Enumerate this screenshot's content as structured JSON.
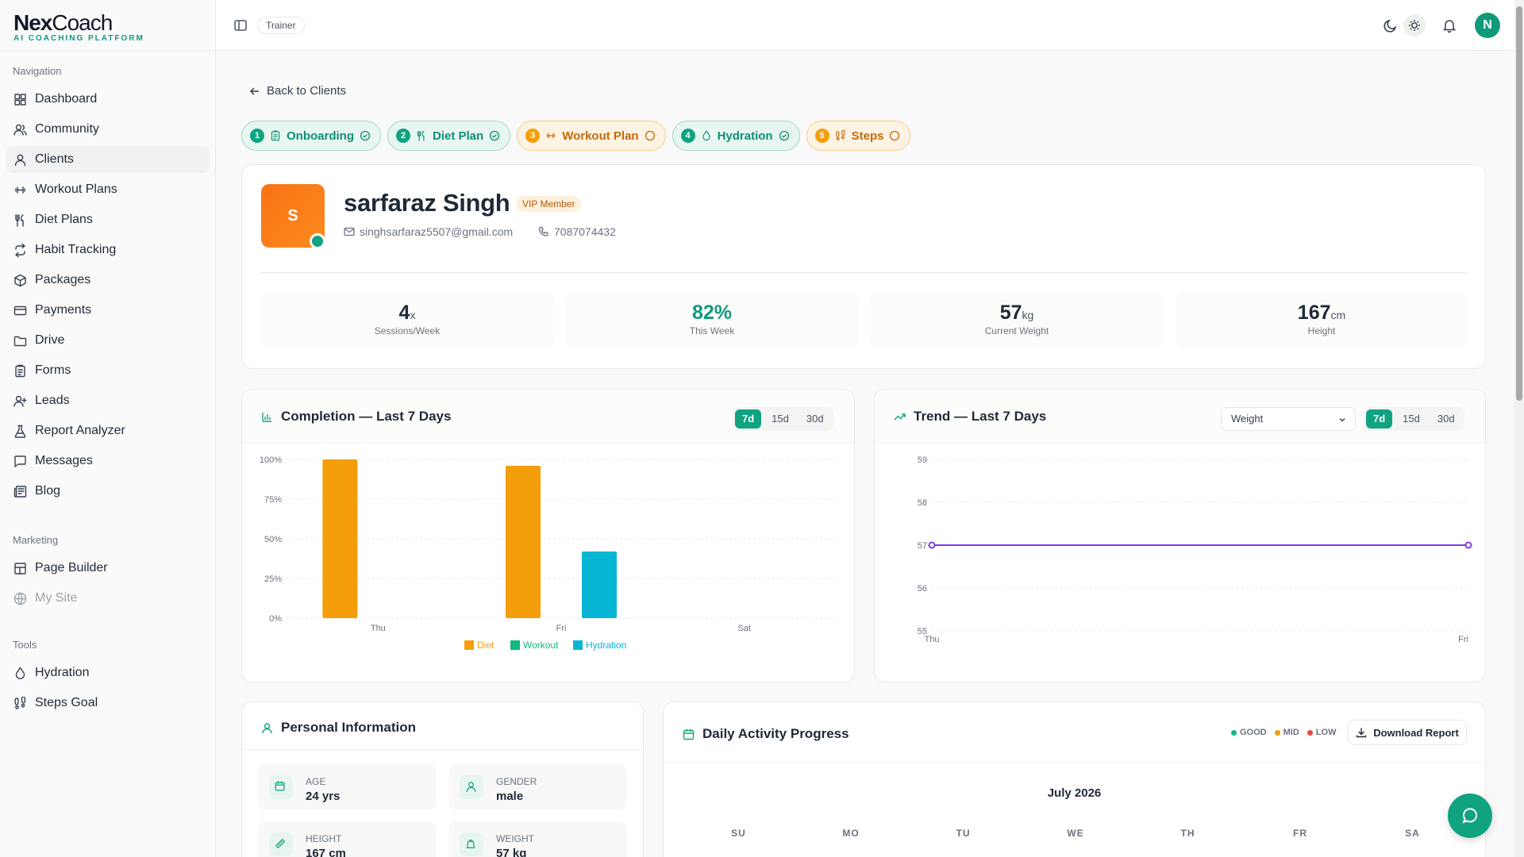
{
  "app": {
    "logo_main_a": "Nex",
    "logo_main_b": "Coach",
    "logo_sub": "AI COACHING PLATFORM"
  },
  "sidebar": {
    "sections": [
      {
        "title": "Navigation",
        "items": [
          {
            "label": "Dashboard",
            "icon": "dashboard-icon"
          },
          {
            "label": "Community",
            "icon": "users-icon"
          },
          {
            "label": "Clients",
            "icon": "user-icon",
            "active": true
          },
          {
            "label": "Workout Plans",
            "icon": "dumbbell-icon"
          },
          {
            "label": "Diet Plans",
            "icon": "utensils-icon"
          },
          {
            "label": "Habit Tracking",
            "icon": "repeat-icon"
          },
          {
            "label": "Packages",
            "icon": "package-icon"
          },
          {
            "label": "Payments",
            "icon": "card-icon"
          },
          {
            "label": "Drive",
            "icon": "folder-icon"
          },
          {
            "label": "Forms",
            "icon": "clipboard-icon"
          },
          {
            "label": "Leads",
            "icon": "user-plus-icon"
          },
          {
            "label": "Report Analyzer",
            "icon": "flask-icon"
          },
          {
            "label": "Messages",
            "icon": "message-icon"
          },
          {
            "label": "Blog",
            "icon": "newspaper-icon"
          }
        ]
      },
      {
        "title": "Marketing",
        "items": [
          {
            "label": "Page Builder",
            "icon": "layout-icon"
          },
          {
            "label": "My Site",
            "icon": "globe-icon",
            "disabled": true
          }
        ]
      },
      {
        "title": "Tools",
        "items": [
          {
            "label": "Hydration",
            "icon": "droplet-icon"
          },
          {
            "label": "Steps Goal",
            "icon": "footprints-icon"
          }
        ]
      }
    ]
  },
  "topbar": {
    "role": "Trainer",
    "avatar_initial": "N"
  },
  "back_label": "Back to Clients",
  "steps": [
    {
      "num": "1",
      "label": "Onboarding",
      "done": true
    },
    {
      "num": "2",
      "label": "Diet Plan",
      "done": true
    },
    {
      "num": "3",
      "label": "Workout Plan",
      "done": false
    },
    {
      "num": "4",
      "label": "Hydration",
      "done": true
    },
    {
      "num": "5",
      "label": "Steps",
      "done": false
    }
  ],
  "profile": {
    "initial": "S",
    "name": "sarfaraz Singh",
    "badge": "VIP Member",
    "email": "singhsarfaraz5507@gmail.com",
    "phone": "7087074432",
    "stats": [
      {
        "value": "4",
        "unit": "x",
        "label": "Sessions/Week"
      },
      {
        "value": "82%",
        "unit": "",
        "label": "This Week",
        "green": true
      },
      {
        "value": "57",
        "unit": "kg",
        "label": "Current Weight"
      },
      {
        "value": "167",
        "unit": "cm",
        "label": "Height"
      }
    ]
  },
  "completion": {
    "title": "Completion — Last 7 Days",
    "ranges": [
      "7d",
      "15d",
      "30d"
    ],
    "active_range": "7d"
  },
  "trend": {
    "title": "Trend — Last 7 Days",
    "metric": "Weight",
    "ranges": [
      "7d",
      "15d",
      "30d"
    ],
    "active_range": "7d"
  },
  "chart_data": [
    {
      "type": "bar",
      "title": "Completion — Last 7 Days",
      "categories": [
        "Thu",
        "Fri",
        "Sat"
      ],
      "series": [
        {
          "name": "Diet",
          "color": "#f59e0b",
          "values": [
            100,
            96,
            0
          ]
        },
        {
          "name": "Workout",
          "color": "#10b981",
          "values": [
            0,
            0,
            0
          ]
        },
        {
          "name": "Hydration",
          "color": "#06b6d4",
          "values": [
            0,
            42,
            0
          ]
        }
      ],
      "yticks": [
        "0%",
        "25%",
        "50%",
        "75%",
        "100%"
      ],
      "ylim": [
        0,
        100
      ],
      "grid": true,
      "legend": "bottom"
    },
    {
      "type": "line",
      "title": "Trend — Last 7 Days",
      "x": [
        "Thu",
        "Fri"
      ],
      "series": [
        {
          "color": "#7c3aed",
          "values": [
            57,
            57
          ]
        }
      ],
      "yticks": [
        "55",
        "56",
        "57",
        "58",
        "59"
      ],
      "ylim": [
        55,
        59
      ],
      "grid": true
    }
  ],
  "personal": {
    "title": "Personal Information",
    "fields": [
      {
        "label": "AGE",
        "value": "24 yrs",
        "icon": "calendar-icon"
      },
      {
        "label": "GENDER",
        "value": "male",
        "icon": "user-icon"
      },
      {
        "label": "HEIGHT",
        "value": "167 cm",
        "icon": "ruler-icon"
      },
      {
        "label": "WEIGHT",
        "value": "57 kg",
        "icon": "weight-icon"
      }
    ]
  },
  "activity": {
    "title": "Daily Activity Progress",
    "legend": [
      {
        "label": "GOOD",
        "color": "#10b981"
      },
      {
        "label": "MID",
        "color": "#f59e0b"
      },
      {
        "label": "LOW",
        "color": "#ef4444"
      }
    ],
    "download_label": "Download Report",
    "month": "July 2026",
    "weekdays": [
      "SU",
      "MO",
      "TU",
      "WE",
      "TH",
      "FR",
      "SA"
    ]
  }
}
